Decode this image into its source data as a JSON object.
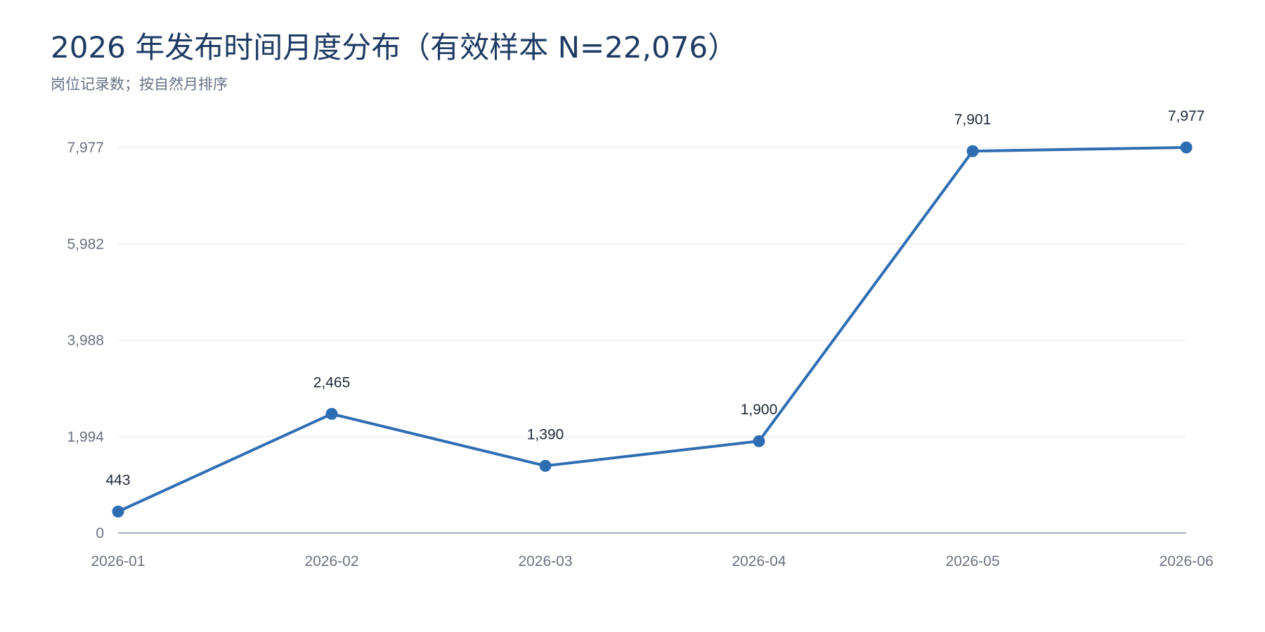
{
  "chart_data": {
    "type": "line",
    "title": "2026 年发布时间月度分布（有效样本 N=22,076）",
    "subtitle": "岗位记录数；按自然月排序",
    "xlabel": "",
    "ylabel": "",
    "categories": [
      "2026-01",
      "2026-02",
      "2026-03",
      "2026-04",
      "2026-05",
      "2026-06"
    ],
    "series": [
      {
        "values": [
          443,
          2465,
          1390,
          1900,
          7901,
          7977
        ]
      }
    ],
    "data_labels": [
      "443",
      "2,465",
      "1,390",
      "1,900",
      "7,901",
      "7,977"
    ],
    "ylim": [
      0,
      7977
    ],
    "y_ticks": [
      0,
      1994,
      3988,
      5982,
      7977
    ],
    "y_tick_labels": [
      "0",
      "1,994",
      "3,988",
      "5,982",
      "7,977"
    ],
    "grid": true,
    "legend": "none",
    "colors": {
      "line": "#2f6db3",
      "grid": "#e5e7eb",
      "axis": "#8a97a8",
      "title": "#1f3b63"
    }
  }
}
